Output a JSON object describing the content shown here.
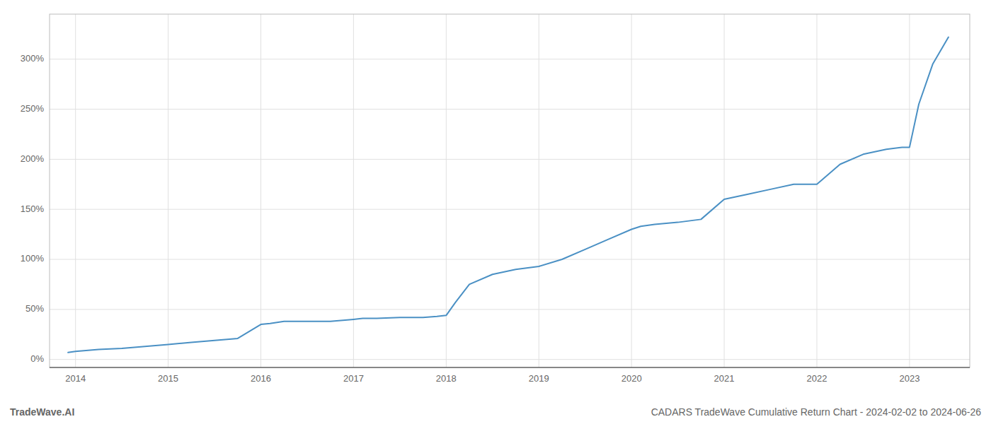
{
  "chart_data": {
    "type": "line",
    "annotations": [
      "TradeWave.AI",
      "CADARS TradeWave Cumulative Return Chart - 2024-02-02 to 2024-06-26"
    ],
    "x": [
      2013.92,
      2014.0,
      2014.25,
      2014.5,
      2014.75,
      2015.0,
      2015.25,
      2015.5,
      2015.75,
      2016.0,
      2016.1,
      2016.25,
      2016.5,
      2016.75,
      2017.0,
      2017.1,
      2017.25,
      2017.5,
      2017.75,
      2017.9,
      2018.0,
      2018.1,
      2018.25,
      2018.5,
      2018.75,
      2019.0,
      2019.25,
      2019.5,
      2019.75,
      2020.0,
      2020.1,
      2020.25,
      2020.5,
      2020.75,
      2021.0,
      2021.25,
      2021.5,
      2021.75,
      2022.0,
      2022.25,
      2022.5,
      2022.75,
      2022.92,
      2023.0,
      2023.1,
      2023.25,
      2023.42
    ],
    "values": [
      7,
      8,
      10,
      11,
      13,
      15,
      17,
      19,
      21,
      35,
      36,
      38,
      38,
      38,
      40,
      41,
      41,
      42,
      42,
      43,
      44,
      57,
      75,
      85,
      90,
      93,
      100,
      110,
      120,
      130,
      133,
      135,
      137,
      140,
      160,
      165,
      170,
      175,
      175,
      195,
      205,
      210,
      212,
      212,
      255,
      295,
      322
    ],
    "color": "#4a90c4",
    "xlim": [
      2013.72,
      2023.65
    ],
    "xticks": [
      2014,
      2015,
      2016,
      2017,
      2018,
      2019,
      2020,
      2021,
      2022,
      2023
    ],
    "ylim": [
      -8,
      345
    ],
    "yticks": [
      {
        "value": 0,
        "label": "0%"
      },
      {
        "value": 50,
        "label": "50%"
      },
      {
        "value": 100,
        "label": "100%"
      },
      {
        "value": 150,
        "label": "150%"
      },
      {
        "value": 200,
        "label": "200%"
      },
      {
        "value": 250,
        "label": "250%"
      },
      {
        "value": 300,
        "label": "300%"
      }
    ],
    "grid": true
  }
}
